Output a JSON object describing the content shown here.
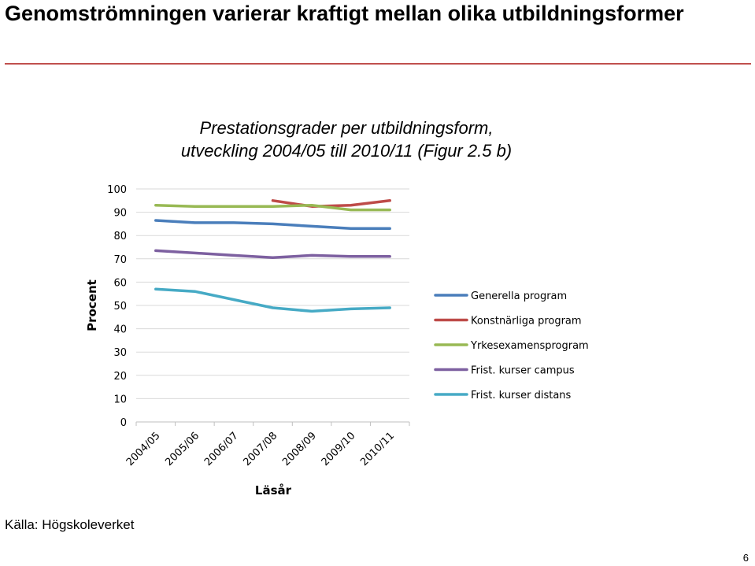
{
  "slide": {
    "title": "Genomströmningen varierar kraftigt mellan olika utbildningsformer",
    "source": "Källa: Högskoleverket",
    "page_number": "6",
    "accent_color": "#c0504d"
  },
  "chart_data": {
    "type": "line",
    "title_line1": "Prestationsgrader per utbildningsform,",
    "title_line2": "utveckling 2004/05 till 2010/11 (Figur 2.5 b)",
    "xlabel": "Läsår",
    "ylabel": "Procent",
    "categories": [
      "2004/05",
      "2005/06",
      "2006/07",
      "2007/08",
      "2008/09",
      "2009/10",
      "2010/11"
    ],
    "ylim": [
      0,
      100
    ],
    "yticks": [
      0,
      10,
      20,
      30,
      40,
      50,
      60,
      70,
      80,
      90,
      100
    ],
    "grid": true,
    "legend_position": "right",
    "series": [
      {
        "name": "Generella program",
        "color": "#4a7ebb",
        "values": [
          86.5,
          85.5,
          85.5,
          85,
          84,
          83,
          83
        ]
      },
      {
        "name": "Konstnärliga program",
        "color": "#be4b48",
        "values": [
          null,
          null,
          null,
          95,
          92.5,
          93,
          95
        ]
      },
      {
        "name": "Yrkesexamensprogram",
        "color": "#98b954",
        "values": [
          93,
          92.5,
          92.5,
          92.5,
          93,
          91,
          91
        ]
      },
      {
        "name": "Frist. kurser campus",
        "color": "#7d60a0",
        "values": [
          73.5,
          72.5,
          71.5,
          70.5,
          71.5,
          71,
          71
        ]
      },
      {
        "name": "Frist. kurser distans",
        "color": "#46aac5",
        "values": [
          57,
          56,
          52.5,
          49,
          47.5,
          48.5,
          49
        ]
      }
    ]
  }
}
